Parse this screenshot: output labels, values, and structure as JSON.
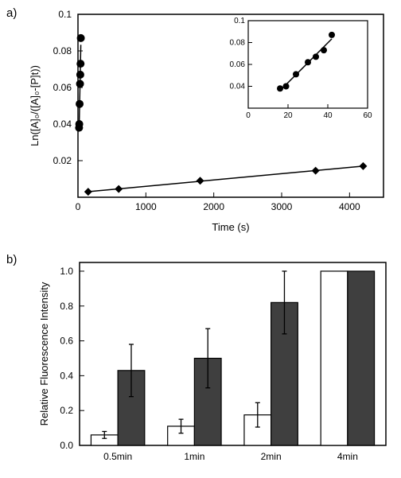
{
  "labels": {
    "panel_a": "a)",
    "panel_b": "b)"
  },
  "panel_a": {
    "type": "scatter-line",
    "background_color": "#ffffff",
    "border_color": "#000000",
    "border_width": 1.5,
    "tick_color": "#000000",
    "tick_fontsize": 12,
    "axis_label_fontsize": 13,
    "label_font_family": "Arial",
    "x_label": "Time (s)",
    "y_label": "Ln([A]₀/([A]₀-[P]t))",
    "xlim": [
      0,
      4500
    ],
    "ylim": [
      0,
      0.1
    ],
    "xticks": [
      0,
      1000,
      2000,
      3000,
      4000
    ],
    "yticks": [
      0.02,
      0.04,
      0.06,
      0.08,
      0.1
    ],
    "marker_size": 5,
    "series": [
      {
        "name": "circles",
        "marker": "circle",
        "color": "#000000",
        "line_width": 1.5,
        "x": [
          16,
          19,
          24,
          30,
          34,
          38,
          42
        ],
        "y": [
          0.038,
          0.04,
          0.051,
          0.062,
          0.067,
          0.073,
          0.087
        ]
      },
      {
        "name": "diamonds",
        "marker": "diamond",
        "color": "#000000",
        "line_width": 1.5,
        "x": [
          150,
          600,
          1800,
          3500,
          4200
        ],
        "y": [
          0.003,
          0.0045,
          0.009,
          0.0145,
          0.017
        ]
      }
    ],
    "inset": {
      "xlim": [
        0,
        60
      ],
      "ylim": [
        0.02,
        0.1
      ],
      "xticks": [
        0,
        20,
        40,
        60
      ],
      "yticks": [
        0.04,
        0.06,
        0.08,
        0.1
      ],
      "tick_fontsize": 10,
      "border_width": 1.2,
      "series": {
        "marker": "circle",
        "color": "#000000",
        "line_width": 1.5,
        "marker_size": 4,
        "x": [
          16,
          19,
          24,
          30,
          34,
          38,
          42
        ],
        "y": [
          0.038,
          0.04,
          0.051,
          0.062,
          0.067,
          0.073,
          0.087
        ]
      }
    }
  },
  "panel_b": {
    "type": "bar",
    "background_color": "#ffffff",
    "border_color": "#000000",
    "border_width": 1.5,
    "tick_fontsize": 12,
    "axis_label_fontsize": 13,
    "y_label": "Relative Fluorescence Intensity",
    "ylim": [
      0,
      1.05
    ],
    "yticks": [
      0.0,
      0.2,
      0.4,
      0.6,
      0.8,
      1.0
    ],
    "categories": [
      "0.5min",
      "1min",
      "2min",
      "4min"
    ],
    "bar_group_width": 0.7,
    "bar_border_color": "#000000",
    "bar_border_width": 1.2,
    "error_cap_width": 6,
    "error_line_width": 1.3,
    "error_color": "#000000",
    "series": [
      {
        "name": "white",
        "fill": "#ffffff",
        "values": [
          0.06,
          0.11,
          0.175,
          1.0
        ],
        "err": [
          0.02,
          0.04,
          0.07,
          0.0
        ]
      },
      {
        "name": "dark",
        "fill": "#3f3f3f",
        "values": [
          0.43,
          0.5,
          0.82,
          1.0
        ],
        "err": [
          0.15,
          0.17,
          0.18,
          0.0
        ]
      }
    ]
  }
}
